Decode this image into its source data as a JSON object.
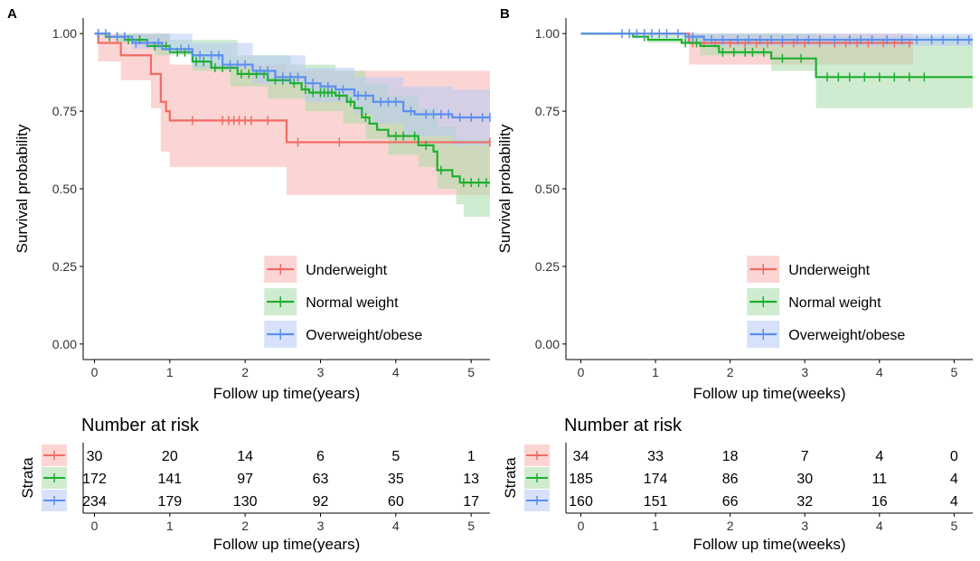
{
  "chart_data": [
    {
      "type": "line",
      "panel_label": "A",
      "title": "",
      "xlabel": "Follow up time(years)",
      "ylabel": "Survival probability",
      "xlim": [
        -0.15,
        5.25
      ],
      "ylim": [
        -0.05,
        1.05
      ],
      "xticks": [
        0,
        1,
        2,
        3,
        4,
        5
      ],
      "yticks": [
        "0.00",
        "0.25",
        "0.50",
        "0.75",
        "1.00"
      ],
      "grid": false,
      "legend": {
        "position": "bottom-right",
        "entries": [
          "Underweight",
          "Normal weight",
          "Overweight/obese"
        ]
      },
      "series": [
        {
          "name": "Underweight",
          "color": "#F06B63",
          "fill": "#F8B3AE",
          "steps": [
            [
              0,
              1
            ],
            [
              0.05,
              0.97
            ],
            [
              0.35,
              0.93
            ],
            [
              0.75,
              0.87
            ],
            [
              0.88,
              0.78
            ],
            [
              0.95,
              0.75
            ],
            [
              1.0,
              0.72
            ],
            [
              2.55,
              0.65
            ],
            [
              5.25,
              0.65
            ]
          ],
          "lower": [
            [
              0,
              1
            ],
            [
              0.05,
              0.91
            ],
            [
              0.35,
              0.85
            ],
            [
              0.75,
              0.76
            ],
            [
              0.88,
              0.62
            ],
            [
              1.0,
              0.57
            ],
            [
              2.55,
              0.48
            ],
            [
              5.25,
              0.48
            ]
          ],
          "upper": [
            [
              0,
              1
            ],
            [
              0.88,
              1.0
            ],
            [
              1.0,
              0.9
            ],
            [
              2.55,
              0.88
            ],
            [
              5.25,
              0.88
            ]
          ],
          "censor_x": [
            1.3,
            1.7,
            1.78,
            1.85,
            1.92,
            2.0,
            2.08,
            2.3,
            2.7,
            3.25,
            5.25
          ]
        },
        {
          "name": "Normal weight",
          "color": "#1DAF2E",
          "fill": "#A9DDA9",
          "steps": [
            [
              0,
              1
            ],
            [
              0.15,
              0.99
            ],
            [
              0.4,
              0.98
            ],
            [
              0.7,
              0.96
            ],
            [
              1.0,
              0.94
            ],
            [
              1.3,
              0.91
            ],
            [
              1.55,
              0.89
            ],
            [
              1.9,
              0.87
            ],
            [
              2.3,
              0.85
            ],
            [
              2.6,
              0.84
            ],
            [
              2.75,
              0.82
            ],
            [
              2.85,
              0.81
            ],
            [
              3.2,
              0.8
            ],
            [
              3.35,
              0.78
            ],
            [
              3.45,
              0.76
            ],
            [
              3.55,
              0.73
            ],
            [
              3.65,
              0.71
            ],
            [
              3.75,
              0.69
            ],
            [
              3.9,
              0.67
            ],
            [
              4.3,
              0.64
            ],
            [
              4.5,
              0.62
            ],
            [
              4.55,
              0.56
            ],
            [
              4.75,
              0.54
            ],
            [
              4.85,
              0.52
            ],
            [
              5.25,
              0.52
            ]
          ],
          "lower": [
            [
              0,
              1
            ],
            [
              0.3,
              0.97
            ],
            [
              0.8,
              0.93
            ],
            [
              1.3,
              0.88
            ],
            [
              1.8,
              0.83
            ],
            [
              2.3,
              0.79
            ],
            [
              2.8,
              0.75
            ],
            [
              3.3,
              0.71
            ],
            [
              3.6,
              0.66
            ],
            [
              3.9,
              0.61
            ],
            [
              4.3,
              0.57
            ],
            [
              4.55,
              0.5
            ],
            [
              4.8,
              0.45
            ],
            [
              4.9,
              0.41
            ],
            [
              5.25,
              0.41
            ]
          ],
          "upper": [
            [
              0,
              1
            ],
            [
              1.0,
              0.98
            ],
            [
              1.9,
              0.93
            ],
            [
              2.6,
              0.9
            ],
            [
              3.2,
              0.88
            ],
            [
              3.6,
              0.84
            ],
            [
              3.9,
              0.8
            ],
            [
              4.3,
              0.76
            ],
            [
              4.55,
              0.7
            ],
            [
              4.8,
              0.66
            ],
            [
              5.25,
              0.66
            ]
          ],
          "censor_x": [
            0.05,
            0.2,
            0.3,
            0.45,
            0.6,
            0.8,
            0.95,
            1.1,
            1.2,
            1.35,
            1.45,
            1.6,
            1.7,
            1.8,
            1.95,
            2.05,
            2.15,
            2.25,
            2.4,
            2.5,
            2.65,
            2.8,
            2.9,
            3.0,
            3.05,
            3.1,
            3.15,
            3.25,
            3.4,
            3.6,
            4.0,
            4.1,
            4.25,
            4.4,
            4.6,
            4.9,
            5.0,
            5.1,
            5.2
          ]
        },
        {
          "name": "Overweight/obese",
          "color": "#5B8FF0",
          "fill": "#B6CBF5",
          "steps": [
            [
              0,
              1
            ],
            [
              0.2,
              0.99
            ],
            [
              0.5,
              0.97
            ],
            [
              0.9,
              0.95
            ],
            [
              1.3,
              0.93
            ],
            [
              1.7,
              0.9
            ],
            [
              2.1,
              0.88
            ],
            [
              2.4,
              0.86
            ],
            [
              2.8,
              0.84
            ],
            [
              3.0,
              0.83
            ],
            [
              3.2,
              0.82
            ],
            [
              3.45,
              0.8
            ],
            [
              3.7,
              0.78
            ],
            [
              4.1,
              0.75
            ],
            [
              4.25,
              0.74
            ],
            [
              4.75,
              0.73
            ],
            [
              5.25,
              0.73
            ]
          ],
          "lower": [
            [
              0,
              1
            ],
            [
              0.5,
              0.95
            ],
            [
              1.3,
              0.89
            ],
            [
              2.1,
              0.84
            ],
            [
              2.8,
              0.78
            ],
            [
              3.45,
              0.74
            ],
            [
              3.7,
              0.71
            ],
            [
              4.1,
              0.67
            ],
            [
              4.75,
              0.64
            ],
            [
              5.25,
              0.64
            ]
          ],
          "upper": [
            [
              0,
              1
            ],
            [
              1.3,
              0.97
            ],
            [
              2.1,
              0.93
            ],
            [
              2.8,
              0.89
            ],
            [
              3.45,
              0.86
            ],
            [
              4.1,
              0.83
            ],
            [
              4.75,
              0.82
            ],
            [
              5.25,
              0.82
            ]
          ],
          "censor_x": [
            0.05,
            0.15,
            0.3,
            0.4,
            0.55,
            0.7,
            0.85,
            1.0,
            1.15,
            1.25,
            1.4,
            1.55,
            1.65,
            1.8,
            1.9,
            2.0,
            2.2,
            2.3,
            2.5,
            2.6,
            2.7,
            2.9,
            3.1,
            3.3,
            3.5,
            3.6,
            3.8,
            3.9,
            4.0,
            4.2,
            4.4,
            4.5,
            4.6,
            4.7,
            4.85,
            5.0,
            5.15,
            5.25
          ]
        }
      ],
      "risk_table": {
        "title": "Number at risk",
        "ylabel": "Strata",
        "xlabel": "Follow up time(years)",
        "times": [
          0,
          1,
          2,
          3,
          4,
          5
        ],
        "rows": [
          {
            "name": "Underweight",
            "values": [
              "30",
              "20",
              "14",
              "6",
              "5",
              "1"
            ]
          },
          {
            "name": "Normal weight",
            "values": [
              "172",
              "141",
              "97",
              "63",
              "35",
              "13"
            ]
          },
          {
            "name": "Overweight/obese",
            "values": [
              "234",
              "179",
              "130",
              "92",
              "60",
              "17"
            ]
          }
        ]
      }
    },
    {
      "type": "line",
      "panel_label": "B",
      "title": "",
      "xlabel": "Follow up time(weeks)",
      "ylabel": "Survival probability",
      "xlim": [
        -0.2,
        5.25
      ],
      "ylim": [
        -0.05,
        1.05
      ],
      "xticks": [
        0,
        1,
        2,
        3,
        4,
        5
      ],
      "yticks": [
        "0.00",
        "0.25",
        "0.50",
        "0.75",
        "1.00"
      ],
      "grid": false,
      "legend": {
        "position": "bottom-right",
        "entries": [
          "Underweight",
          "Normal weight",
          "Overweight/obese"
        ]
      },
      "series": [
        {
          "name": "Underweight",
          "color": "#F06B63",
          "fill": "#F8B3AE",
          "steps": [
            [
              0,
              1
            ],
            [
              1.45,
              0.97
            ],
            [
              4.45,
              0.97
            ]
          ],
          "lower": [
            [
              0,
              1
            ],
            [
              1.45,
              0.9
            ],
            [
              4.45,
              0.9
            ]
          ],
          "upper": [
            [
              0,
              1
            ],
            [
              4.45,
              1.0
            ]
          ],
          "censor_x": [
            1.5,
            1.65,
            1.8,
            2.0,
            2.2,
            2.35,
            2.5,
            2.7,
            2.85,
            3.0,
            3.2,
            3.4,
            3.55,
            3.7,
            3.85,
            4.05,
            4.2,
            4.4
          ]
        },
        {
          "name": "Normal weight",
          "color": "#1DAF2E",
          "fill": "#A9DDA9",
          "steps": [
            [
              0,
              1
            ],
            [
              0.7,
              0.99
            ],
            [
              0.9,
              0.98
            ],
            [
              1.35,
              0.97
            ],
            [
              1.6,
              0.96
            ],
            [
              1.85,
              0.94
            ],
            [
              2.55,
              0.92
            ],
            [
              3.15,
              0.86
            ],
            [
              5.25,
              0.86
            ]
          ],
          "lower": [
            [
              0,
              1
            ],
            [
              0.9,
              0.97
            ],
            [
              1.6,
              0.93
            ],
            [
              2.55,
              0.88
            ],
            [
              3.15,
              0.76
            ],
            [
              5.25,
              0.76
            ]
          ],
          "upper": [
            [
              0,
              1
            ],
            [
              3.15,
              0.99
            ],
            [
              5.25,
              0.96
            ]
          ],
          "censor_x": [
            0.85,
            1.4,
            1.55,
            1.9,
            2.05,
            2.2,
            2.3,
            2.45,
            2.7,
            2.95,
            3.3,
            3.45,
            3.6,
            3.8,
            4.0,
            4.2,
            4.4,
            4.6
          ]
        },
        {
          "name": "Overweight/obese",
          "color": "#5B8FF0",
          "fill": "#B6CBF5",
          "steps": [
            [
              0,
              1
            ],
            [
              1.4,
              0.99
            ],
            [
              1.65,
              0.98
            ],
            [
              5.25,
              0.98
            ]
          ],
          "lower": [
            [
              0,
              1
            ],
            [
              1.4,
              0.97
            ],
            [
              1.65,
              0.96
            ],
            [
              5.25,
              0.96
            ]
          ],
          "upper": [
            [
              0,
              1
            ],
            [
              5.25,
              1.0
            ]
          ],
          "censor_x": [
            0.55,
            0.65,
            0.75,
            0.85,
            0.95,
            1.05,
            1.15,
            1.3,
            1.5,
            1.75,
            1.9,
            2.1,
            2.25,
            2.4,
            2.55,
            2.7,
            2.9,
            3.05,
            3.2,
            3.4,
            3.6,
            3.75,
            3.9,
            4.1,
            4.3,
            4.5,
            4.7,
            4.85,
            5.05,
            5.2
          ]
        }
      ],
      "risk_table": {
        "title": "Number at risk",
        "ylabel": "Strata",
        "xlabel": "Follow up time(weeks)",
        "times": [
          0,
          1,
          2,
          3,
          4,
          5
        ],
        "rows": [
          {
            "name": "Underweight",
            "values": [
              "34",
              "33",
              "18",
              "7",
              "4",
              "0"
            ]
          },
          {
            "name": "Normal weight",
            "values": [
              "185",
              "174",
              "86",
              "30",
              "11",
              "4"
            ]
          },
          {
            "name": "Overweight/obese",
            "values": [
              "160",
              "151",
              "66",
              "32",
              "16",
              "4"
            ]
          }
        ]
      }
    }
  ]
}
